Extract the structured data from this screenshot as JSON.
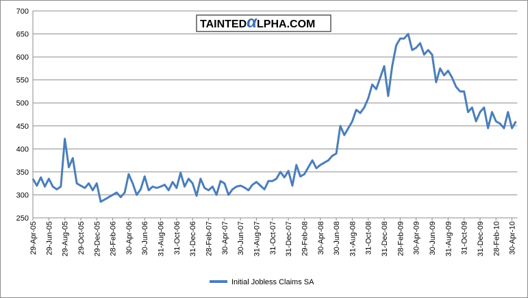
{
  "chart_data": {
    "type": "line",
    "logo_left": "TAINTED",
    "logo_mark": "α",
    "logo_right": "LPHA.COM",
    "categories": [
      "29-Apr-05",
      null,
      null,
      null,
      "29-Jun-05",
      null,
      null,
      null,
      "29-Aug-05",
      null,
      null,
      null,
      "29-Oct-05",
      null,
      null,
      null,
      "29-Dec-05",
      null,
      null,
      null,
      "28-Feb-06",
      null,
      null,
      null,
      "30-Apr-06",
      null,
      null,
      null,
      "30-Jun-06",
      null,
      null,
      null,
      "31-Aug-06",
      null,
      null,
      null,
      "31-Oct-06",
      null,
      null,
      null,
      "31-Dec-06",
      null,
      null,
      null,
      "28-Feb-07",
      null,
      null,
      null,
      "30-Apr-07",
      null,
      null,
      null,
      "30-Jun-07",
      null,
      null,
      null,
      "31-Aug-07",
      null,
      null,
      null,
      "31-Oct-07",
      null,
      null,
      null,
      "31-Dec-07",
      null,
      null,
      null,
      "29-Feb-08",
      null,
      null,
      null,
      "30-Apr-08",
      null,
      null,
      null,
      "30-Jun-08",
      null,
      null,
      null,
      "31-Aug-08",
      null,
      null,
      null,
      "31-Oct-08",
      null,
      null,
      null,
      "31-Dec-08",
      null,
      null,
      null,
      "28-Feb-09",
      null,
      null,
      null,
      "30-Apr-09",
      null,
      null,
      null,
      "30-Jun-09",
      null,
      null,
      null,
      "31-Aug-09",
      null,
      null,
      null,
      "31-Oct-09",
      null,
      null,
      null,
      "31-Dec-09",
      null,
      null,
      null,
      "28-Feb-10",
      null,
      null,
      null,
      "30-Apr-10",
      null
    ],
    "series": [
      {
        "name": "Initial Jobless Claims SA",
        "color": "#4a7ebb",
        "values": [
          335,
          320,
          338,
          318,
          335,
          318,
          312,
          318,
          422,
          360,
          380,
          325,
          320,
          315,
          325,
          310,
          325,
          285,
          290,
          295,
          300,
          305,
          295,
          305,
          345,
          325,
          300,
          312,
          340,
          310,
          318,
          315,
          318,
          322,
          310,
          328,
          315,
          348,
          318,
          335,
          325,
          298,
          335,
          315,
          310,
          318,
          300,
          330,
          325,
          300,
          312,
          318,
          320,
          316,
          310,
          322,
          328,
          320,
          312,
          330,
          330,
          335,
          350,
          338,
          352,
          320,
          365,
          340,
          345,
          360,
          375,
          358,
          365,
          370,
          375,
          385,
          390,
          450,
          430,
          445,
          460,
          485,
          478,
          490,
          510,
          540,
          530,
          555,
          580,
          515,
          580,
          625,
          640,
          640,
          650,
          615,
          620,
          630,
          605,
          615,
          605,
          545,
          575,
          560,
          570,
          555,
          535,
          525,
          525,
          480,
          490,
          460,
          480,
          490,
          445,
          480,
          460,
          455,
          445,
          480,
          445,
          460
        ]
      }
    ],
    "ylim": [
      250,
      700
    ],
    "yticks": [
      250,
      300,
      350,
      400,
      450,
      500,
      550,
      600,
      650,
      700
    ],
    "grid": true,
    "legend": "bottom"
  }
}
